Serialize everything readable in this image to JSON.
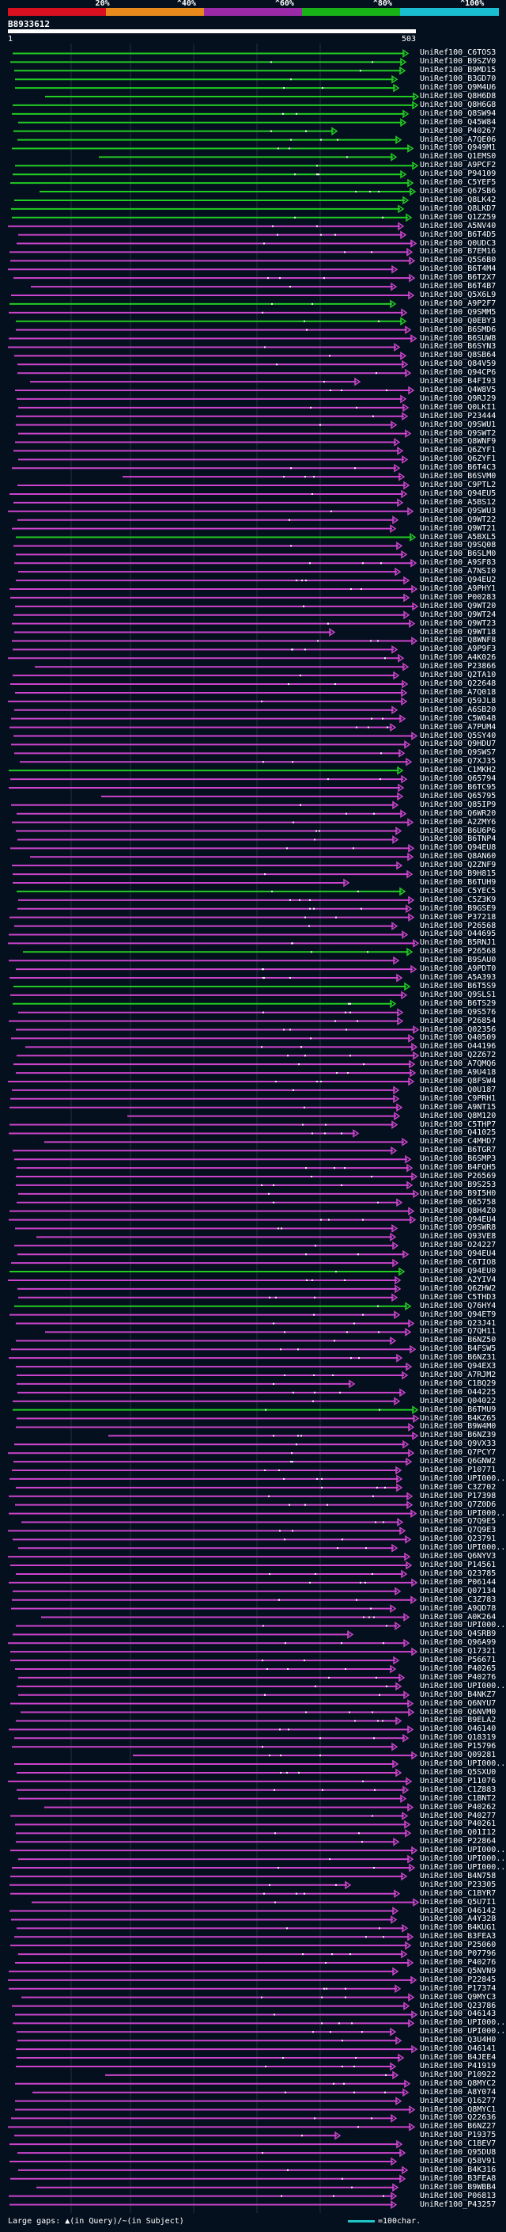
{
  "scale": {
    "labels": [
      "20%",
      "^40%",
      "^60%",
      "^80%",
      "^100%"
    ],
    "colors": [
      "#d91020",
      "#e8891c",
      "#9a2aa8",
      "#19b219",
      "#19bfd0"
    ]
  },
  "query": {
    "id": "B8933612",
    "start": "1",
    "end": "503"
  },
  "hits": [
    {
      "label": "UniRef100_C6TOS3",
      "color": "green"
    },
    {
      "label": "UniRef100_B9SZV0",
      "color": "green"
    },
    {
      "label": "UniRef100_B9MD15",
      "color": "green"
    },
    {
      "label": "UniRef100_B3GD70",
      "color": "green"
    },
    {
      "label": "UniRef100_Q9M4U6",
      "color": "green"
    },
    {
      "label": "UniRef100_Q8H6D8",
      "color": "green"
    },
    {
      "label": "UniRef100_Q8H6G8",
      "color": "green"
    },
    {
      "label": "UniRef100_Q8SW94",
      "color": "green"
    },
    {
      "label": "UniRef100_Q45W84",
      "color": "green"
    },
    {
      "label": "UniRef100_P40267",
      "color": "green"
    },
    {
      "label": "UniRef100_A7QE06",
      "color": "green"
    },
    {
      "label": "UniRef100_Q949M1",
      "color": "green"
    },
    {
      "label": "UniRef100_Q1EMS0",
      "color": "green"
    },
    {
      "label": "UniRef100_A9PCF2",
      "color": "green"
    },
    {
      "label": "UniRef100_P94109",
      "color": "green"
    },
    {
      "label": "UniRef100_C5YEF5",
      "color": "green"
    },
    {
      "label": "UniRef100_Q67SB6",
      "color": "green"
    },
    {
      "label": "UniRef100_Q8LK42",
      "color": "green"
    },
    {
      "label": "UniRef100_Q8LKD7",
      "color": "green"
    },
    {
      "label": "UniRef100_Q1ZZ59",
      "color": "green"
    },
    {
      "label": "UniRef100_A5NV40",
      "color": "magenta"
    },
    {
      "label": "UniRef100_B6T4D5",
      "color": "magenta"
    },
    {
      "label": "UniRef100_Q0UDC3",
      "color": "magenta"
    },
    {
      "label": "UniRef100_B7EM16",
      "color": "magenta"
    },
    {
      "label": "UniRef100_Q5S6B0",
      "color": "magenta"
    },
    {
      "label": "UniRef100_B6T4M4",
      "color": "magenta"
    },
    {
      "label": "UniRef100_B6T2X7",
      "color": "magenta"
    },
    {
      "label": "UniRef100_B6T4B7",
      "color": "magenta"
    },
    {
      "label": "UniRef100_Q5X6L9",
      "color": "magenta"
    },
    {
      "label": "UniRef100_A9P2F7",
      "color": "green"
    },
    {
      "label": "UniRef100_Q9SMM5",
      "color": "magenta"
    },
    {
      "label": "UniRef100_Q0EBY3",
      "color": "green"
    },
    {
      "label": "UniRef100_B6SMD6",
      "color": "magenta"
    },
    {
      "label": "UniRef100_B6SUW8",
      "color": "magenta"
    },
    {
      "label": "UniRef100_B6SYN3",
      "color": "magenta"
    },
    {
      "label": "UniRef100_Q8SB64",
      "color": "magenta"
    },
    {
      "label": "UniRef100_Q84V59",
      "color": "magenta"
    },
    {
      "label": "UniRef100_Q94CP6",
      "color": "magenta"
    },
    {
      "label": "UniRef100_B4FI93",
      "color": "magenta"
    },
    {
      "label": "UniRef100_Q4W8V5",
      "color": "magenta"
    },
    {
      "label": "UniRef100_Q9RJ29",
      "color": "magenta"
    },
    {
      "label": "UniRef100_Q0LKI1",
      "color": "magenta"
    },
    {
      "label": "UniRef100_P23444",
      "color": "magenta"
    },
    {
      "label": "UniRef100_Q9SWU1",
      "color": "magenta"
    },
    {
      "label": "UniRef100_Q9SWT2",
      "color": "magenta"
    },
    {
      "label": "UniRef100_Q8WNF9",
      "color": "magenta"
    },
    {
      "label": "UniRef100_Q6ZYF1",
      "color": "magenta"
    },
    {
      "label": "UniRef100_Q6ZYF1",
      "color": "magenta"
    },
    {
      "label": "UniRef100_B6T4C3",
      "color": "magenta"
    },
    {
      "label": "UniRef100_B6SVM0",
      "color": "magenta"
    },
    {
      "label": "UniRef100_C9PTL2",
      "color": "magenta"
    },
    {
      "label": "UniRef100_Q94EU5",
      "color": "magenta"
    },
    {
      "label": "UniRef100_A5BS12",
      "color": "magenta"
    },
    {
      "label": "UniRef100_Q9SWU3",
      "color": "magenta"
    },
    {
      "label": "UniRef100_Q9WT22",
      "color": "magenta"
    },
    {
      "label": "UniRef100_Q9WT21",
      "color": "magenta"
    },
    {
      "label": "UniRef100_A5BXL5",
      "color": "green"
    },
    {
      "label": "UniRef100_Q9SQ08",
      "color": "magenta"
    },
    {
      "label": "UniRef100_B6SLM0",
      "color": "magenta"
    },
    {
      "label": "UniRef100_A9SF83",
      "color": "magenta"
    },
    {
      "label": "UniRef100_A7NSI0",
      "color": "magenta"
    },
    {
      "label": "UniRef100_Q94EU2",
      "color": "magenta"
    },
    {
      "label": "UniRef100_A9PHY1",
      "color": "magenta"
    },
    {
      "label": "UniRef100_P00283",
      "color": "magenta"
    },
    {
      "label": "UniRef100_Q9WT20",
      "color": "magenta"
    },
    {
      "label": "UniRef100_Q9WT24",
      "color": "magenta"
    },
    {
      "label": "UniRef100_Q9WT23",
      "color": "magenta"
    },
    {
      "label": "UniRef100_Q9WT18",
      "color": "magenta"
    },
    {
      "label": "UniRef100_Q8WNF8",
      "color": "magenta"
    },
    {
      "label": "UniRef100_A9P9F3",
      "color": "magenta"
    },
    {
      "label": "UniRef100_A4K026",
      "color": "magenta"
    },
    {
      "label": "UniRef100_P23866",
      "color": "magenta"
    },
    {
      "label": "UniRef100_Q2TA10",
      "color": "magenta"
    },
    {
      "label": "UniRef100_Q22648",
      "color": "magenta"
    },
    {
      "label": "UniRef100_A7Q018",
      "color": "magenta"
    },
    {
      "label": "UniRef100_Q59JL8",
      "color": "magenta"
    },
    {
      "label": "UniRef100_A6SB20",
      "color": "magenta"
    },
    {
      "label": "UniRef100_C5W048",
      "color": "magenta"
    },
    {
      "label": "UniRef100_A7PUM4",
      "color": "magenta"
    },
    {
      "label": "UniRef100_Q5SY40",
      "color": "magenta"
    },
    {
      "label": "UniRef100_Q9HDU7",
      "color": "magenta"
    },
    {
      "label": "UniRef100_Q9SWS7",
      "color": "magenta"
    },
    {
      "label": "UniRef100_Q7XJ35",
      "color": "magenta"
    },
    {
      "label": "UniRef100_C1MKH2",
      "color": "green"
    },
    {
      "label": "UniRef100_Q65794",
      "color": "magenta"
    },
    {
      "label": "UniRef100_B6TC95",
      "color": "magenta"
    },
    {
      "label": "UniRef100_Q65795",
      "color": "magenta"
    },
    {
      "label": "UniRef100_Q85IP9",
      "color": "magenta"
    },
    {
      "label": "UniRef100_Q6WR20",
      "color": "magenta"
    },
    {
      "label": "UniRef100_A2ZMY6",
      "color": "magenta"
    },
    {
      "label": "UniRef100_B6U6P6",
      "color": "magenta"
    },
    {
      "label": "UniRef100_B6TNP4",
      "color": "magenta"
    },
    {
      "label": "UniRef100_Q94EU8",
      "color": "magenta"
    },
    {
      "label": "UniRef100_Q8AN60",
      "color": "magenta"
    },
    {
      "label": "UniRef100_Q2ZNF9",
      "color": "magenta"
    },
    {
      "label": "UniRef100_B9H815",
      "color": "magenta"
    },
    {
      "label": "UniRef100_B6TUH9",
      "color": "magenta"
    },
    {
      "label": "UniRef100_C5YEC5",
      "color": "green"
    },
    {
      "label": "UniRef100_C5Z3K9",
      "color": "magenta"
    },
    {
      "label": "UniRef100_B9GSE9",
      "color": "magenta"
    },
    {
      "label": "UniRef100_P37218",
      "color": "magenta"
    },
    {
      "label": "UniRef100_P26568",
      "color": "magenta"
    },
    {
      "label": "UniRef100_O44695",
      "color": "magenta"
    },
    {
      "label": "UniRef100_B5RNJ1",
      "color": "magenta"
    },
    {
      "label": "UniRef100_P26568",
      "color": "green"
    },
    {
      "label": "UniRef100_B9SAU0",
      "color": "magenta"
    },
    {
      "label": "UniRef100_A9PDT0",
      "color": "magenta"
    },
    {
      "label": "UniRef100_A5A393",
      "color": "magenta"
    },
    {
      "label": "UniRef100_B6T5S9",
      "color": "green"
    },
    {
      "label": "UniRef100_Q9SLS1",
      "color": "magenta"
    },
    {
      "label": "UniRef100_B6TS29",
      "color": "green"
    },
    {
      "label": "UniRef100_Q9S576",
      "color": "magenta"
    },
    {
      "label": "UniRef100_P26854",
      "color": "magenta"
    },
    {
      "label": "UniRef100_Q02356",
      "color": "magenta"
    },
    {
      "label": "UniRef100_Q40509",
      "color": "magenta"
    },
    {
      "label": "UniRef100_O44196",
      "color": "magenta"
    },
    {
      "label": "UniRef100_Q2Z672",
      "color": "magenta"
    },
    {
      "label": "UniRef100_A7QMQ6",
      "color": "magenta"
    },
    {
      "label": "UniRef100_A9U418",
      "color": "magenta"
    },
    {
      "label": "UniRef100_Q8FSW4",
      "color": "magenta"
    },
    {
      "label": "UniRef100_Q0U187",
      "color": "magenta"
    },
    {
      "label": "UniRef100_C9PRH1",
      "color": "magenta"
    },
    {
      "label": "UniRef100_A9NT15",
      "color": "magenta"
    },
    {
      "label": "UniRef100_Q8M120",
      "color": "magenta"
    },
    {
      "label": "UniRef100_C5THP7",
      "color": "magenta"
    },
    {
      "label": "UniRef100_Q41025",
      "color": "magenta"
    },
    {
      "label": "UniRef100_C4MHD7",
      "color": "magenta"
    },
    {
      "label": "UniRef100_B6TGR7",
      "color": "magenta"
    },
    {
      "label": "UniRef100_B6SMP3",
      "color": "magenta"
    },
    {
      "label": "UniRef100_B4FQH5",
      "color": "magenta"
    },
    {
      "label": "UniRef100_P26569",
      "color": "magenta"
    },
    {
      "label": "UniRef100_B9S253",
      "color": "magenta"
    },
    {
      "label": "UniRef100_B9I5H0",
      "color": "magenta"
    },
    {
      "label": "UniRef100_Q65758",
      "color": "magenta"
    },
    {
      "label": "UniRef100_Q8H4Z0",
      "color": "magenta"
    },
    {
      "label": "UniRef100_Q94EU4",
      "color": "magenta"
    },
    {
      "label": "UniRef100_Q9SWR8",
      "color": "magenta"
    },
    {
      "label": "UniRef100_Q93VE8",
      "color": "magenta"
    },
    {
      "label": "UniRef100_O24227",
      "color": "magenta"
    },
    {
      "label": "UniRef100_Q94EU4",
      "color": "magenta"
    },
    {
      "label": "UniRef100_C6TIO8",
      "color": "magenta"
    },
    {
      "label": "UniRef100_Q94EU0",
      "color": "green"
    },
    {
      "label": "UniRef100_A2YIV4",
      "color": "magenta"
    },
    {
      "label": "UniRef100_Q6ZHW2",
      "color": "magenta"
    },
    {
      "label": "UniRef100_C5THD3",
      "color": "magenta"
    },
    {
      "label": "UniRef100_Q76HY4",
      "color": "green"
    },
    {
      "label": "UniRef100_Q94ET9",
      "color": "magenta"
    },
    {
      "label": "UniRef100_Q23J41",
      "color": "magenta"
    },
    {
      "label": "UniRef100_Q7QH11",
      "color": "magenta"
    },
    {
      "label": "UniRef100_B6NZ50",
      "color": "magenta"
    },
    {
      "label": "UniRef100_B4FSW5",
      "color": "magenta"
    },
    {
      "label": "UniRef100_B6NZ31",
      "color": "magenta"
    },
    {
      "label": "UniRef100_Q94EX3",
      "color": "magenta"
    },
    {
      "label": "UniRef100_A7RJM2",
      "color": "magenta"
    },
    {
      "label": "UniRef100_C1BQ29",
      "color": "magenta"
    },
    {
      "label": "UniRef100_O44225",
      "color": "magenta"
    },
    {
      "label": "UniRef100_Q04022",
      "color": "magenta"
    },
    {
      "label": "UniRef100_B6TMU9",
      "color": "green"
    },
    {
      "label": "UniRef100_B4KZ65",
      "color": "magenta"
    },
    {
      "label": "UniRef100_B9W4M0",
      "color": "magenta"
    },
    {
      "label": "UniRef100_B6NZ39",
      "color": "magenta"
    },
    {
      "label": "UniRef100_Q9VX33",
      "color": "magenta"
    },
    {
      "label": "UniRef100_Q7PCY7",
      "color": "magenta"
    },
    {
      "label": "UniRef100_Q6GNW2",
      "color": "magenta"
    },
    {
      "label": "UniRef100_P10771",
      "color": "magenta"
    },
    {
      "label": "UniRef100_UPI000...",
      "color": "magenta"
    },
    {
      "label": "UniRef100_C3Z702",
      "color": "magenta"
    },
    {
      "label": "UniRef100_P17398",
      "color": "magenta"
    },
    {
      "label": "UniRef100_Q7Z0D6",
      "color": "magenta"
    },
    {
      "label": "UniRef100_UPI000...",
      "color": "magenta"
    },
    {
      "label": "UniRef100_Q7Q9E5",
      "color": "magenta"
    },
    {
      "label": "UniRef100_Q7Q9E3",
      "color": "magenta"
    },
    {
      "label": "UniRef100_Q23791",
      "color": "magenta"
    },
    {
      "label": "UniRef100_UPI000...",
      "color": "magenta"
    },
    {
      "label": "UniRef100_Q6NYV3",
      "color": "magenta"
    },
    {
      "label": "UniRef100_P14561",
      "color": "magenta"
    },
    {
      "label": "UniRef100_Q23785",
      "color": "magenta"
    },
    {
      "label": "UniRef100_P06144",
      "color": "magenta"
    },
    {
      "label": "UniRef100_Q07134",
      "color": "magenta"
    },
    {
      "label": "UniRef100_C3Z783",
      "color": "magenta"
    },
    {
      "label": "UniRef100_A9QD78",
      "color": "magenta"
    },
    {
      "label": "UniRef100_A0K264",
      "color": "magenta"
    },
    {
      "label": "UniRef100_UPI000...",
      "color": "magenta"
    },
    {
      "label": "UniRef100_Q4SRB9",
      "color": "magenta"
    },
    {
      "label": "UniRef100_Q96A99",
      "color": "magenta"
    },
    {
      "label": "UniRef100_Q17321",
      "color": "magenta"
    },
    {
      "label": "UniRef100_P56671",
      "color": "magenta"
    },
    {
      "label": "UniRef100_P40265",
      "color": "magenta"
    },
    {
      "label": "UniRef100_P40276",
      "color": "magenta"
    },
    {
      "label": "UniRef100_UPI000...",
      "color": "magenta"
    },
    {
      "label": "UniRef100_B4NKZ7",
      "color": "magenta"
    },
    {
      "label": "UniRef100_Q6NYU7",
      "color": "magenta"
    },
    {
      "label": "UniRef100_Q6NVM0",
      "color": "magenta"
    },
    {
      "label": "UniRef100_B9ELA2",
      "color": "magenta"
    },
    {
      "label": "UniRef100_O46140",
      "color": "magenta"
    },
    {
      "label": "UniRef100_Q18319",
      "color": "magenta"
    },
    {
      "label": "UniRef100_P15796",
      "color": "magenta"
    },
    {
      "label": "UniRef100_Q09281",
      "color": "magenta"
    },
    {
      "label": "UniRef100_UPI000...",
      "color": "magenta"
    },
    {
      "label": "UniRef100_Q5SXU0",
      "color": "magenta"
    },
    {
      "label": "UniRef100_P11076",
      "color": "magenta"
    },
    {
      "label": "UniRef100_C1Z883",
      "color": "magenta"
    },
    {
      "label": "UniRef100_C1BNT2",
      "color": "magenta"
    },
    {
      "label": "UniRef100_P40262",
      "color": "magenta"
    },
    {
      "label": "UniRef100_P40277",
      "color": "magenta"
    },
    {
      "label": "UniRef100_P40261",
      "color": "magenta"
    },
    {
      "label": "UniRef100_Q01I12",
      "color": "magenta"
    },
    {
      "label": "UniRef100_P22864",
      "color": "magenta"
    },
    {
      "label": "UniRef100_UPI000...",
      "color": "magenta"
    },
    {
      "label": "UniRef100_UPI000...",
      "color": "magenta"
    },
    {
      "label": "UniRef100_UPI000...",
      "color": "magenta"
    },
    {
      "label": "UniRef100_B4N758",
      "color": "magenta"
    },
    {
      "label": "UniRef100_P23305",
      "color": "magenta"
    },
    {
      "label": "UniRef100_C1BYR7",
      "color": "magenta"
    },
    {
      "label": "UniRef100_Q5U7I1",
      "color": "magenta"
    },
    {
      "label": "UniRef100_O46142",
      "color": "magenta"
    },
    {
      "label": "UniRef100_A4Y328",
      "color": "magenta"
    },
    {
      "label": "UniRef100_B4KUG1",
      "color": "magenta"
    },
    {
      "label": "UniRef100_B3FEA3",
      "color": "magenta"
    },
    {
      "label": "UniRef100_P25060",
      "color": "magenta"
    },
    {
      "label": "UniRef100_P07796",
      "color": "magenta"
    },
    {
      "label": "UniRef100_P40276",
      "color": "magenta"
    },
    {
      "label": "UniRef100_Q5NVN9",
      "color": "magenta"
    },
    {
      "label": "UniRef100_P22845",
      "color": "magenta"
    },
    {
      "label": "UniRef100_P17374",
      "color": "magenta"
    },
    {
      "label": "UniRef100_Q9MYC3",
      "color": "magenta"
    },
    {
      "label": "UniRef100_Q23786",
      "color": "magenta"
    },
    {
      "label": "UniRef100_O46143",
      "color": "magenta"
    },
    {
      "label": "UniRef100_UPI000...",
      "color": "magenta"
    },
    {
      "label": "UniRef100_UPI000...",
      "color": "magenta"
    },
    {
      "label": "UniRef100_Q3U4H0",
      "color": "magenta"
    },
    {
      "label": "UniRef100_O46141",
      "color": "magenta"
    },
    {
      "label": "UniRef100_B4JEE4",
      "color": "magenta"
    },
    {
      "label": "UniRef100_P41919",
      "color": "magenta"
    },
    {
      "label": "UniRef100_P10922",
      "color": "magenta"
    },
    {
      "label": "UniRef100_Q8MYC2",
      "color": "magenta"
    },
    {
      "label": "UniRef100_A8Y074",
      "color": "magenta"
    },
    {
      "label": "UniRef100_Q16277",
      "color": "magenta"
    },
    {
      "label": "UniRef100_Q8MYC1",
      "color": "magenta"
    },
    {
      "label": "UniRef100_Q22636",
      "color": "magenta"
    },
    {
      "label": "UniRef100_B6NZ27",
      "color": "magenta"
    },
    {
      "label": "UniRef100_P19375",
      "color": "magenta"
    },
    {
      "label": "UniRef100_C1BEV7",
      "color": "magenta"
    },
    {
      "label": "UniRef100_Q95DU8",
      "color": "magenta"
    },
    {
      "label": "UniRef100_Q58V91",
      "color": "magenta"
    },
    {
      "label": "UniRef100_B4K316",
      "color": "magenta"
    },
    {
      "label": "UniRef100_B3FEA8",
      "color": "magenta"
    },
    {
      "label": "UniRef100_B9WBB4",
      "color": "magenta"
    },
    {
      "label": "UniRef100_P06813",
      "color": "magenta"
    },
    {
      "label": "UniRef100_P43257",
      "color": "magenta"
    }
  ],
  "footer": {
    "legend": "Large gaps: ▲(in Query)/~(in Subject)",
    "scale": "=100char."
  }
}
